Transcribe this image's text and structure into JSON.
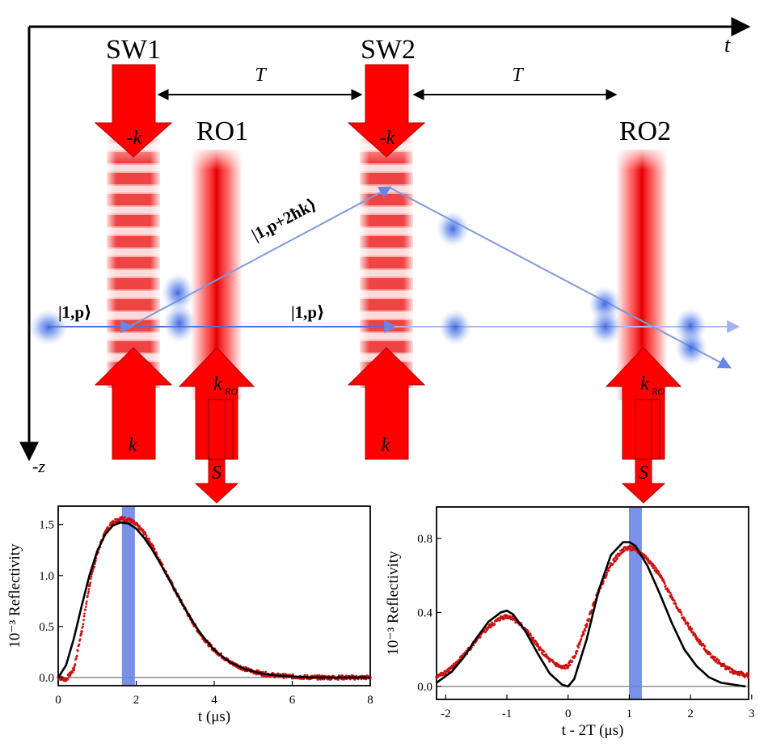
{
  "diagram": {
    "time_axis_label": "t",
    "z_axis_label": "-z",
    "standing_waves": [
      {
        "label": "SW1",
        "top_arrow": "-k",
        "bottom_arrow": "k"
      },
      {
        "label": "SW2",
        "top_arrow": "-k",
        "bottom_arrow": "k"
      }
    ],
    "readouts": [
      {
        "label": "RO1",
        "k_label": "k",
        "k_sub": "RO",
        "signal_label": "S"
      },
      {
        "label": "RO2",
        "k_label": "k",
        "k_sub": "RO",
        "signal_label": "S"
      }
    ],
    "interval_labels": [
      "T",
      "T"
    ],
    "state_labels": {
      "ground_left": "|1,p⟩",
      "ground_mid": "|1,p⟩",
      "excited": "|1,p+2ħk⟩"
    },
    "colors": {
      "beam_red": "#ee1111",
      "arrow_red": "#ff0000",
      "atom_blue": "#3366dd",
      "trajectory_blue": "#7f98e0",
      "marker_blue": "#6d84e6",
      "data_red": "#cc1111"
    }
  },
  "chart_data": [
    {
      "type": "line",
      "xlabel": "t (μs)",
      "ylabel": "10⁻³ Reflectivity",
      "xlim": [
        0,
        8
      ],
      "ylim": [
        -0.08,
        1.68
      ],
      "xticks": [
        "0",
        "2",
        "4",
        "6",
        "8"
      ],
      "yticks": [
        "0.0",
        "0.5",
        "1.0",
        "1.5"
      ],
      "marker_x": 1.8,
      "series": [
        {
          "style": "data-points",
          "x": [
            0.0,
            0.2,
            0.4,
            0.6,
            0.8,
            1.0,
            1.2,
            1.4,
            1.6,
            1.8,
            2.0,
            2.2,
            2.4,
            2.6,
            2.8,
            3.0,
            3.2,
            3.4,
            3.6,
            3.8,
            4.0,
            4.4,
            4.8,
            5.2,
            5.6,
            6.0,
            6.5,
            7.0,
            7.5,
            8.0
          ],
          "y": [
            0.0,
            -0.02,
            0.08,
            0.45,
            0.9,
            1.22,
            1.42,
            1.53,
            1.56,
            1.55,
            1.5,
            1.42,
            1.3,
            1.15,
            1.0,
            0.85,
            0.71,
            0.57,
            0.45,
            0.35,
            0.27,
            0.15,
            0.08,
            0.04,
            0.02,
            0.01,
            0.0,
            0.0,
            0.0,
            0.0
          ]
        },
        {
          "style": "fit-curve",
          "x": [
            0.0,
            0.2,
            0.4,
            0.6,
            0.8,
            1.0,
            1.2,
            1.4,
            1.6,
            1.8,
            2.0,
            2.2,
            2.4,
            2.6,
            2.8,
            3.0,
            3.2,
            3.4,
            3.6,
            3.8,
            4.0,
            4.4,
            4.8,
            5.2,
            5.6,
            6.0,
            6.5,
            7.0,
            7.5,
            8.0
          ],
          "y": [
            0.0,
            0.12,
            0.38,
            0.7,
            1.0,
            1.24,
            1.4,
            1.49,
            1.52,
            1.51,
            1.46,
            1.37,
            1.26,
            1.13,
            0.99,
            0.85,
            0.71,
            0.58,
            0.46,
            0.36,
            0.27,
            0.15,
            0.08,
            0.04,
            0.02,
            0.01,
            0.0,
            0.0,
            0.0,
            0.0
          ]
        }
      ]
    },
    {
      "type": "line",
      "xlabel": "t - 2T (μs)",
      "ylabel": "10⁻³ Reflectivity",
      "xlim": [
        -2.15,
        2.95
      ],
      "ylim": [
        -0.07,
        0.97
      ],
      "xticks": [
        "-2",
        "-1",
        "0",
        "1",
        "2",
        "3"
      ],
      "yticks": [
        "0.0",
        "0.4",
        "0.8"
      ],
      "marker_x": 1.1,
      "series": [
        {
          "style": "data-points",
          "x": [
            -2.15,
            -1.9,
            -1.7,
            -1.5,
            -1.3,
            -1.1,
            -1.0,
            -0.9,
            -0.7,
            -0.5,
            -0.3,
            -0.1,
            0.0,
            0.1,
            0.3,
            0.5,
            0.7,
            0.9,
            1.0,
            1.1,
            1.3,
            1.5,
            1.7,
            1.9,
            2.1,
            2.3,
            2.5,
            2.7,
            2.9
          ],
          "y": [
            0.05,
            0.1,
            0.17,
            0.25,
            0.32,
            0.37,
            0.38,
            0.37,
            0.31,
            0.22,
            0.14,
            0.1,
            0.11,
            0.16,
            0.33,
            0.52,
            0.66,
            0.74,
            0.75,
            0.74,
            0.69,
            0.6,
            0.48,
            0.36,
            0.26,
            0.18,
            0.12,
            0.08,
            0.06
          ]
        },
        {
          "style": "fit-curve",
          "x": [
            -2.15,
            -1.9,
            -1.7,
            -1.5,
            -1.3,
            -1.1,
            -1.0,
            -0.9,
            -0.7,
            -0.5,
            -0.3,
            -0.1,
            0.0,
            0.1,
            0.3,
            0.5,
            0.7,
            0.9,
            1.0,
            1.1,
            1.3,
            1.5,
            1.7,
            1.9,
            2.1,
            2.3,
            2.5,
            2.7,
            2.9
          ],
          "y": [
            0.02,
            0.08,
            0.16,
            0.26,
            0.35,
            0.4,
            0.41,
            0.39,
            0.3,
            0.18,
            0.07,
            0.01,
            0.0,
            0.04,
            0.25,
            0.52,
            0.71,
            0.78,
            0.78,
            0.76,
            0.65,
            0.5,
            0.34,
            0.2,
            0.11,
            0.05,
            0.02,
            0.01,
            0.0
          ]
        }
      ]
    }
  ]
}
